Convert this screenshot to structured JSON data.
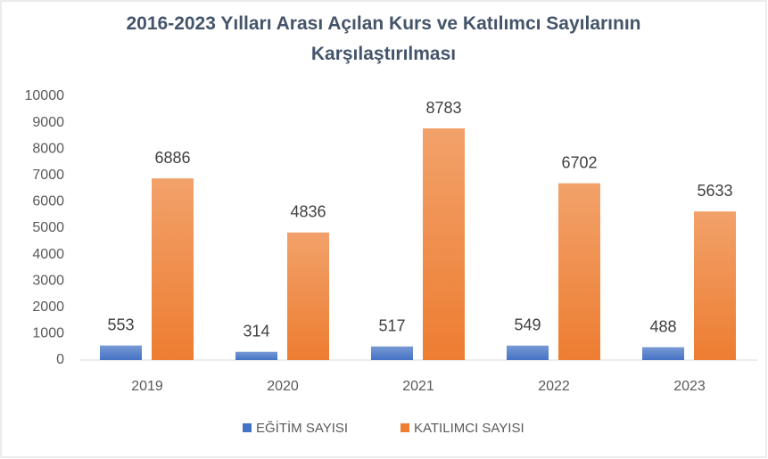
{
  "chart_data": {
    "type": "bar",
    "title": "2016-2023 Yılları Arası Açılan Kurs ve Katılımcı Sayılarının Karşılaştırılması",
    "categories": [
      "2019",
      "2020",
      "2021",
      "2022",
      "2023"
    ],
    "series": [
      {
        "name": "EĞİTİM SAYISI",
        "color": "#4472c4",
        "values": [
          553,
          314,
          517,
          549,
          488
        ]
      },
      {
        "name": "KATILIMCI SAYISI",
        "color": "#ed7d31",
        "values": [
          6886,
          4836,
          8783,
          6702,
          5633
        ]
      }
    ],
    "ylim": [
      0,
      10000
    ],
    "yticks": [
      0,
      1000,
      2000,
      3000,
      4000,
      5000,
      6000,
      7000,
      8000,
      9000,
      10000
    ],
    "grid": false,
    "legend": "bottom"
  }
}
